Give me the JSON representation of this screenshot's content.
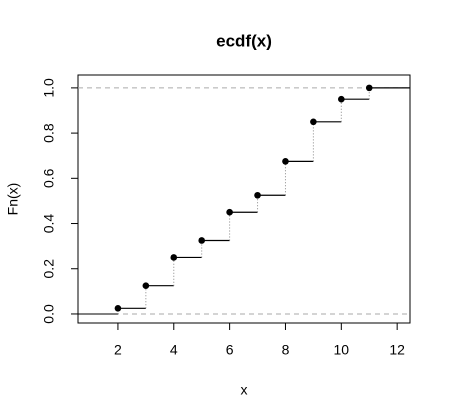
{
  "chart_data": {
    "type": "step",
    "title": "ecdf(x)",
    "x_label": "x",
    "y_label": "Fn(x)",
    "x": [
      2,
      3,
      4,
      5,
      6,
      7,
      8,
      9,
      10,
      11
    ],
    "values": [
      0.025,
      0.125,
      0.25,
      0.325,
      0.45,
      0.525,
      0.675,
      0.85,
      0.95,
      1.0
    ],
    "color": "#000000",
    "xlim": [
      0.57,
      12.46
    ],
    "xticks": [
      2,
      4,
      6,
      8,
      10,
      12
    ],
    "ylim": [
      -0.04,
      1.057
    ],
    "yticks": [
      {
        "value": 0,
        "label": "0.0"
      },
      0.2,
      0.4,
      0.6,
      0.8,
      {
        "value": 1,
        "label": "1.0"
      }
    ],
    "reference_lines": [
      0,
      1
    ]
  }
}
